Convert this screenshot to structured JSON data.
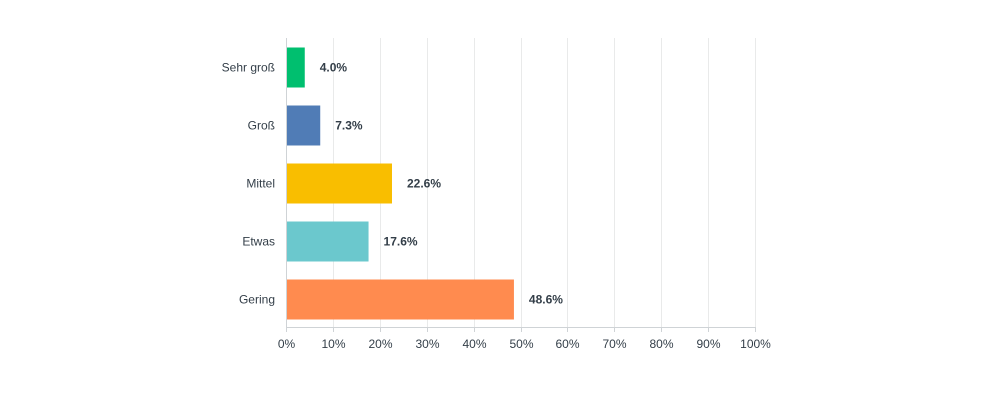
{
  "chart_data": {
    "type": "bar",
    "orientation": "horizontal",
    "categories": [
      "Sehr groß",
      "Groß",
      "Mittel",
      "Etwas",
      "Gering"
    ],
    "values": [
      4.0,
      7.3,
      22.6,
      17.6,
      48.6
    ],
    "value_labels": [
      "4.0%",
      "7.3%",
      "22.6%",
      "17.6%",
      "48.6%"
    ],
    "colors": [
      "#00bf6f",
      "#507cb6",
      "#f9be00",
      "#6bc8cd",
      "#ff8b4f"
    ],
    "x_ticks": [
      "0%",
      "10%",
      "20%",
      "30%",
      "40%",
      "50%",
      "60%",
      "70%",
      "80%",
      "90%",
      "100%"
    ],
    "xlim": [
      0,
      100
    ],
    "title": "",
    "xlabel": "",
    "ylabel": "",
    "grid": true,
    "legend": false
  }
}
